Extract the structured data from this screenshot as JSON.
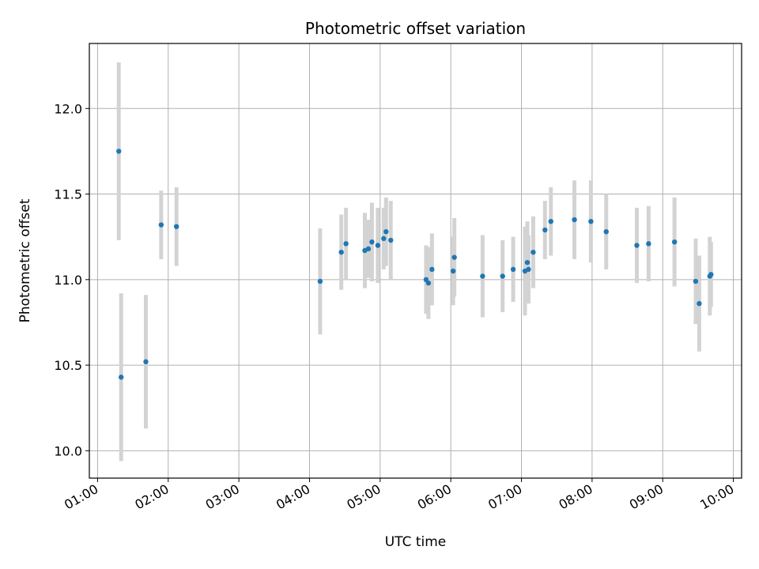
{
  "chart_data": {
    "type": "scatter",
    "title": "Photometric offset variation",
    "xlabel": "UTC time",
    "ylabel": "Photometric offset",
    "x_ticks": [
      "01:00",
      "02:00",
      "03:00",
      "04:00",
      "05:00",
      "06:00",
      "07:00",
      "08:00",
      "09:00",
      "10:00"
    ],
    "y_ticks": [
      "10.0",
      "10.5",
      "11.0",
      "11.5",
      "12.0"
    ],
    "xlim": [
      "00:53",
      "10:07"
    ],
    "ylim": [
      9.84,
      12.38
    ],
    "grid": true,
    "marker_color": "#1f77b4",
    "errorbar_color": "#d3d3d3",
    "points": [
      {
        "x": "01:18",
        "y": 11.75,
        "err": 0.52
      },
      {
        "x": "01:20",
        "y": 10.43,
        "err": 0.49
      },
      {
        "x": "01:41",
        "y": 10.52,
        "err": 0.39
      },
      {
        "x": "01:54",
        "y": 11.32,
        "err": 0.2
      },
      {
        "x": "02:07",
        "y": 11.31,
        "err": 0.23
      },
      {
        "x": "04:09",
        "y": 10.99,
        "err": 0.31
      },
      {
        "x": "04:27",
        "y": 11.16,
        "err": 0.22
      },
      {
        "x": "04:31",
        "y": 11.21,
        "err": 0.21
      },
      {
        "x": "04:47",
        "y": 11.17,
        "err": 0.22
      },
      {
        "x": "04:50",
        "y": 11.18,
        "err": 0.17
      },
      {
        "x": "04:53",
        "y": 11.22,
        "err": 0.23
      },
      {
        "x": "04:58",
        "y": 11.2,
        "err": 0.22
      },
      {
        "x": "05:03",
        "y": 11.24,
        "err": 0.18
      },
      {
        "x": "05:05",
        "y": 11.28,
        "err": 0.2
      },
      {
        "x": "05:09",
        "y": 11.23,
        "err": 0.23
      },
      {
        "x": "05:39",
        "y": 11.0,
        "err": 0.2
      },
      {
        "x": "05:41",
        "y": 10.98,
        "err": 0.21
      },
      {
        "x": "05:44",
        "y": 11.06,
        "err": 0.21
      },
      {
        "x": "06:02",
        "y": 11.05,
        "err": 0.2
      },
      {
        "x": "06:03",
        "y": 11.13,
        "err": 0.23
      },
      {
        "x": "06:27",
        "y": 11.02,
        "err": 0.24
      },
      {
        "x": "06:44",
        "y": 11.02,
        "err": 0.21
      },
      {
        "x": "06:53",
        "y": 11.06,
        "err": 0.19
      },
      {
        "x": "07:03",
        "y": 11.05,
        "err": 0.26
      },
      {
        "x": "07:05",
        "y": 11.1,
        "err": 0.24
      },
      {
        "x": "07:06",
        "y": 11.06,
        "err": 0.2
      },
      {
        "x": "07:10",
        "y": 11.16,
        "err": 0.21
      },
      {
        "x": "07:20",
        "y": 11.29,
        "err": 0.17
      },
      {
        "x": "07:25",
        "y": 11.34,
        "err": 0.2
      },
      {
        "x": "07:45",
        "y": 11.35,
        "err": 0.23
      },
      {
        "x": "07:59",
        "y": 11.34,
        "err": 0.24
      },
      {
        "x": "08:12",
        "y": 11.28,
        "err": 0.22
      },
      {
        "x": "08:38",
        "y": 11.2,
        "err": 0.22
      },
      {
        "x": "08:48",
        "y": 11.21,
        "err": 0.22
      },
      {
        "x": "09:10",
        "y": 11.22,
        "err": 0.26
      },
      {
        "x": "09:28",
        "y": 10.99,
        "err": 0.25
      },
      {
        "x": "09:31",
        "y": 10.86,
        "err": 0.28
      },
      {
        "x": "09:40",
        "y": 11.02,
        "err": 0.23
      },
      {
        "x": "09:41",
        "y": 11.03,
        "err": 0.19
      }
    ]
  }
}
